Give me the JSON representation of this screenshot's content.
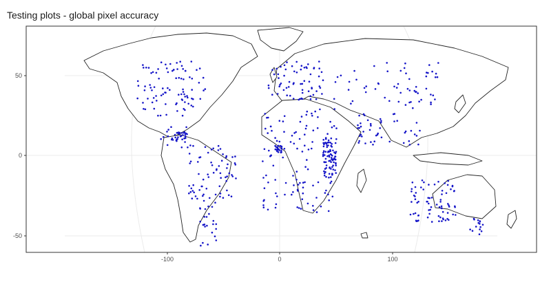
{
  "title": "Testing plots - global pixel accuracy",
  "chart_data": {
    "type": "scatter",
    "title": "Testing plots - global pixel accuracy",
    "xlabel": "",
    "ylabel": "",
    "xlim": [
      -222,
      225
    ],
    "ylim": [
      -57,
      84
    ],
    "x_ticks": [
      -100,
      0,
      100
    ],
    "y_ticks": [
      -50,
      0,
      50
    ],
    "x_tick_labels": [
      "-100",
      "0",
      "100"
    ],
    "y_tick_labels": [
      "-50",
      "0",
      "50"
    ],
    "grid": true,
    "legend": "none",
    "colors": {
      "points": "#1515c8",
      "coastline": "#222222",
      "grid": "#ebebeb",
      "border": "#333333",
      "land": "#ffffff"
    },
    "clusters": [
      {
        "lon": [
          -125,
          -65
        ],
        "lat": [
          28,
          62
        ],
        "n": 90
      },
      {
        "lon": [
          -105,
          -80
        ],
        "lat": [
          8,
          22
        ],
        "n": 20
      },
      {
        "lon": [
          -92,
          -80
        ],
        "lat": [
          13,
          18
        ],
        "n": 25
      },
      {
        "lon": [
          -80,
          -38
        ],
        "lat": [
          -25,
          10
        ],
        "n": 70
      },
      {
        "lon": [
          -72,
          -55
        ],
        "lat": [
          -53,
          -25
        ],
        "n": 25
      },
      {
        "lon": [
          -10,
          40
        ],
        "lat": [
          38,
          62
        ],
        "n": 65
      },
      {
        "lon": [
          40,
          140
        ],
        "lat": [
          35,
          62
        ],
        "n": 50
      },
      {
        "lon": [
          -15,
          50
        ],
        "lat": [
          -32,
          35
        ],
        "n": 120
      },
      {
        "lon": [
          38,
          50
        ],
        "lat": [
          -10,
          15
        ],
        "n": 80
      },
      {
        "lon": [
          -5,
          2
        ],
        "lat": [
          5,
          10
        ],
        "n": 20
      },
      {
        "lon": [
          68,
          90
        ],
        "lat": [
          10,
          30
        ],
        "n": 30
      },
      {
        "lon": [
          95,
          125
        ],
        "lat": [
          10,
          45
        ],
        "n": 25
      },
      {
        "lon": [
          114,
          154
        ],
        "lat": [
          -38,
          -12
        ],
        "n": 75
      },
      {
        "lon": [
          166,
          178
        ],
        "lat": [
          -46,
          -35
        ],
        "n": 15
      }
    ]
  }
}
